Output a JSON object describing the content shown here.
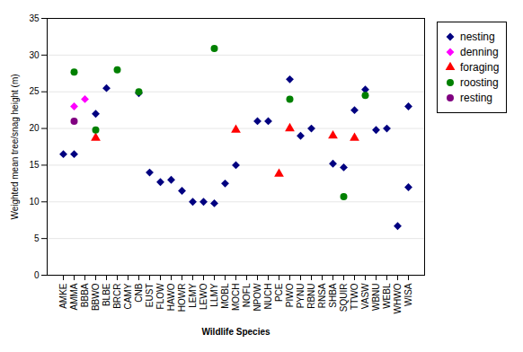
{
  "chart_data": {
    "type": "scatter",
    "xlabel": "Wildlife Species",
    "ylabel": "Weighted mean tree/snag height (m)",
    "categories": [
      "AMKE",
      "AMMA",
      "BBBA",
      "BBWO",
      "BLBE",
      "BRCR",
      "CAMY",
      "CNB",
      "EUST",
      "FLOW",
      "HAWO",
      "HOWR",
      "LEMY",
      "LEWO",
      "LLMY",
      "MOBL",
      "MOCH",
      "NOFL",
      "NPOW",
      "NUCH",
      "PCE",
      "PIWO",
      "PYNU",
      "RBNU",
      "RNSA",
      "SHBA",
      "SQUIR",
      "TTWO",
      "VASW",
      "WBNU",
      "WEBL",
      "WHWO",
      "WISA"
    ],
    "series": [
      {
        "name": "nesting",
        "color": "#000080",
        "marker": "diamond",
        "x": [
          "AMKE",
          "AMMA",
          "BBWO",
          "BLBE",
          "CNB",
          "EUST",
          "FLOW",
          "HAWO",
          "HOWR",
          "LEMY",
          "LEWO",
          "LLMY",
          "MOBL",
          "MOCH",
          "NPOW",
          "NUCH",
          "PIWO",
          "PYNU",
          "RBNU",
          "SHBA",
          "SQUIR",
          "TTWO",
          "VASW",
          "WBNU",
          "WEBL",
          "WHWO",
          "WISA",
          "WISA"
        ],
        "values": [
          16.5,
          16.5,
          22.0,
          25.5,
          24.8,
          14.0,
          12.7,
          13.0,
          11.5,
          10.0,
          10.0,
          9.8,
          12.5,
          15.0,
          21.0,
          21.0,
          26.7,
          19.0,
          20.0,
          15.2,
          14.7,
          22.5,
          25.3,
          19.8,
          20.0,
          6.7,
          12.0,
          23.0
        ]
      },
      {
        "name": "denning",
        "color": "#FF00FF",
        "marker": "diamond",
        "x": [
          "AMMA",
          "BBBA"
        ],
        "values": [
          23.0,
          24.0
        ]
      },
      {
        "name": "foraging",
        "color": "#FF0000",
        "marker": "triangle",
        "x": [
          "BBWO",
          "MOCH",
          "PCE",
          "PIWO",
          "SHBA",
          "TTWO"
        ],
        "values": [
          18.7,
          19.8,
          13.8,
          20.0,
          19.0,
          18.7
        ]
      },
      {
        "name": "roosting",
        "color": "#008000",
        "marker": "circle",
        "x": [
          "AMMA",
          "BBWO",
          "BRCR",
          "CNB",
          "LLMY",
          "PIWO",
          "SQUIR",
          "VASW"
        ],
        "values": [
          27.7,
          19.8,
          28.0,
          25.0,
          30.9,
          24.0,
          10.7,
          24.5
        ]
      },
      {
        "name": "resting",
        "color": "#800080",
        "marker": "circle",
        "x": [
          "AMMA"
        ],
        "values": [
          21.0
        ]
      }
    ],
    "ylim": [
      0,
      35
    ],
    "yticks": [
      0,
      5,
      10,
      15,
      20,
      25,
      30,
      35
    ],
    "grid": true,
    "legend": "right"
  }
}
